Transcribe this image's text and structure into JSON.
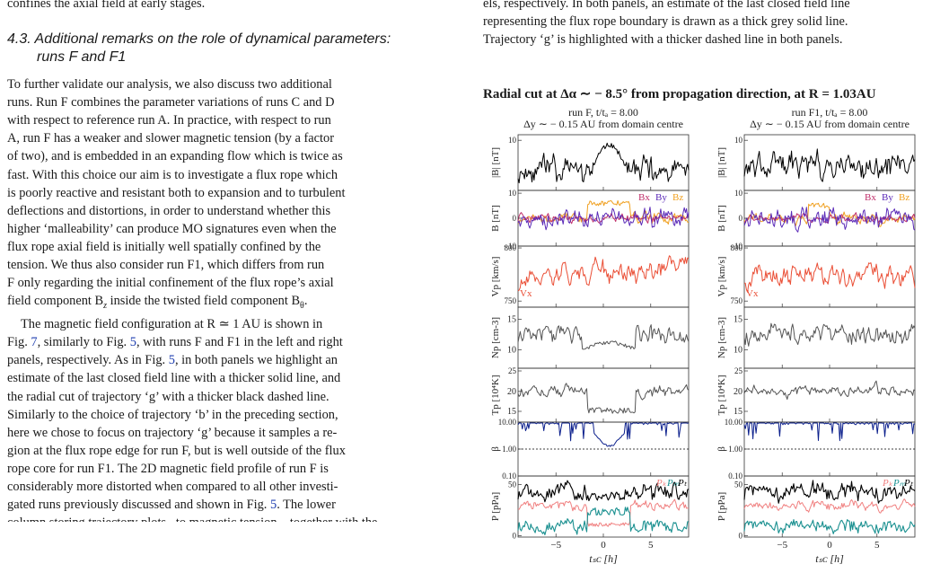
{
  "left": {
    "top_line": "confines the axial field at early stages.",
    "section_number": "4.3.",
    "section_title_line1": "Additional remarks on the role of dynamical parameters:",
    "section_title_line2": "runs F and F1",
    "paragraph1_lines": [
      "To further validate our analysis, we also discuss two additional",
      "runs. Run F combines the parameter variations of runs C and D",
      "with respect to reference run A. In practice, with respect to run",
      "A, run F has a weaker and slower magnetic tension (by a factor",
      "of two), and is embedded in an expanding flow which is twice as",
      "fast. With this choice our aim is to investigate a flux rope which",
      "is poorly reactive and resistant both to expansion and to turbulent",
      "deflections and distortions, in order to understand whether this",
      "higher ‘malleability’ can produce MO signatures even when the",
      "flux rope axial field is initially well spatially confined by the",
      "tension. We thus also consider run F1, which differs from run",
      "F only regarding the initial confinement of the flux rope’s axial"
    ],
    "paragraph1_last": "field component B",
    "p1_last_sub1": "z",
    "p1_last_mid": " inside the twisted field component B",
    "p1_last_sub2": "θ",
    "p1_last_end": ".",
    "paragraph2_first": "The magnetic field configuration at R ≃ 1 AU is shown in",
    "p2_l2_a": "Fig. ",
    "p2_l2_ref": "7",
    "p2_l2_b": ", similarly to Fig. ",
    "p2_l2_ref2": "5",
    "p2_l2_c": ", with runs F and F1 in the left and right",
    "p2_l3_a": "panels, respectively. As in Fig. ",
    "p2_l3_ref": "5",
    "p2_l3_b": ", in both panels we highlight an",
    "paragraph2_lines": [
      "estimate of the last closed field line with a thicker solid line, and",
      "the radial cut of trajectory ‘g’ with a thicker black dashed line.",
      "Similarly to the choice of trajectory ‘b’ in the preceding section,",
      "here we chose to focus on trajectory ‘g’ because it samples a re-",
      "gion at the flux rope edge for run F, but is well outside of the flux",
      "rope core for run F1. The 2D magnetic field profile of run F is",
      "considerably more distorted when compared to all other investi-"
    ],
    "p2_last_a": "gated runs previously discussed and shown in Fig. ",
    "p2_last_ref": "5",
    "p2_last_b": ". The lower",
    "p2_cut": "column storing trajectory plots...to magnetic tension ...together with the"
  },
  "caption": {
    "lines": [
      "els, respectively. In both panels, an estimate of the last closed field line",
      "representing the flux rope boundary is drawn as a thick grey solid line.",
      "Trajectory ‘g’ is highlighted with a thicker dashed line in both panels."
    ]
  },
  "figure": {
    "title": "Radial cut at Δα ∼ − 8.5° from propagation direction, at R = 1.03AU",
    "left_header1": "run F, t/tₐ = 8.00",
    "right_header1": "run F1, t/tₐ = 8.00",
    "header2": "Δy ∼ − 0.15 AU from domain centre",
    "ylabels": [
      "|B| [nT]",
      "B [nT]",
      "Vp [km/s]",
      "Np [cm-3]",
      "Tp [10⁴K]",
      "β",
      "P [pPa]"
    ],
    "legend_b": [
      "Bx",
      "By",
      "Bz"
    ],
    "legend_v": "Vx",
    "legend_p": [
      "Pₖ",
      "Pₘ",
      "Pₜ"
    ],
    "xticks": [
      "−5",
      "0",
      "5"
    ],
    "xlabel": "tₛᴄ [h]",
    "yticks": {
      "absB": [
        "10"
      ],
      "B": [
        "10",
        "0",
        "−10"
      ],
      "Vp": [
        "800",
        "750"
      ],
      "Np": [
        "15",
        "10"
      ],
      "Tp": [
        "25",
        "20",
        "15"
      ],
      "beta": [
        "10.00",
        "1.00",
        "0.10"
      ],
      "P": [
        "50",
        "0"
      ]
    },
    "colors": {
      "bx": "#c0306b",
      "by": "#5a2ab8",
      "bz": "#f0a020",
      "vx": "#ea4e35",
      "np": "#555555",
      "beta": "#0b1f8c",
      "pk": "#f08080",
      "pm": "#1a9090",
      "pt": "#000000"
    }
  }
}
